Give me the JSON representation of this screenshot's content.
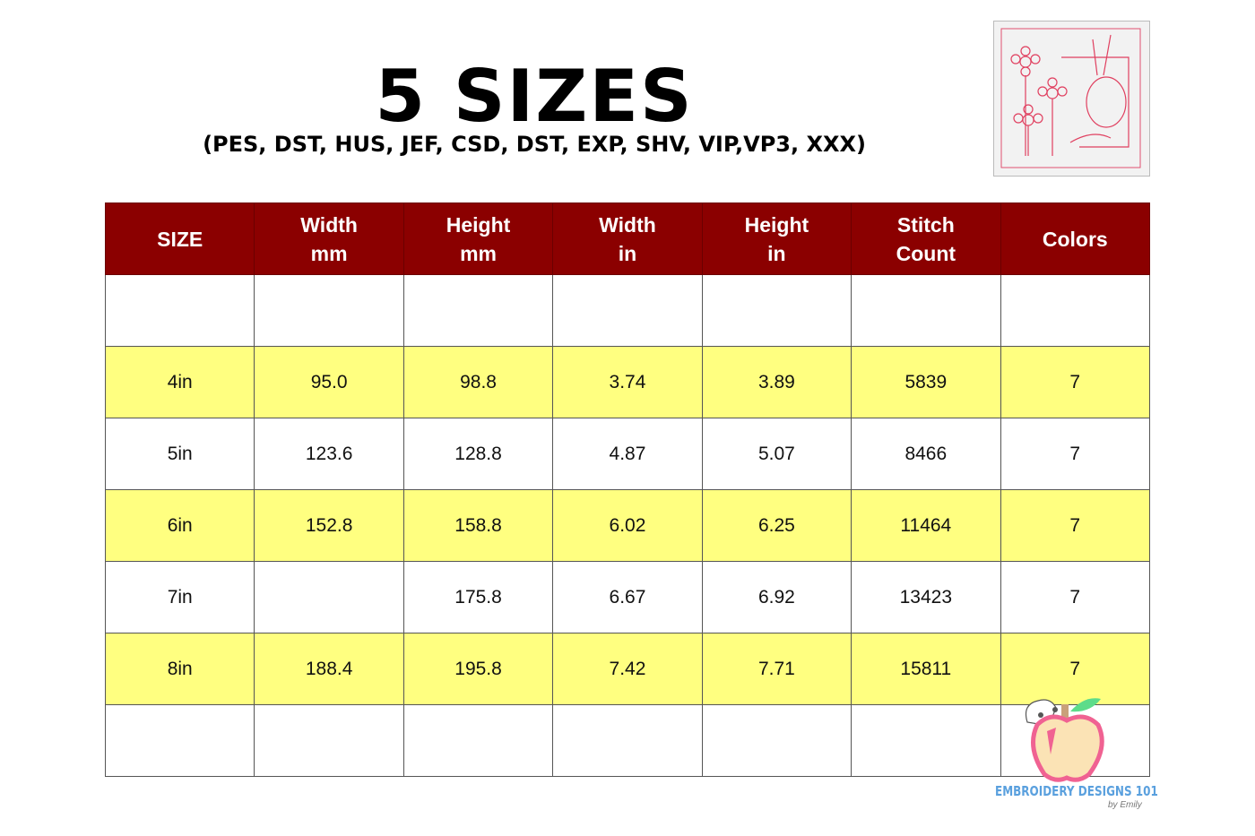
{
  "title": "5 SIZES",
  "subtitle": "(PES, DST, HUS, JEF, CSD, DST, EXP, SHV, VIP,VP3, XXX)",
  "table": {
    "headers": [
      [
        "SIZE"
      ],
      [
        "Width",
        "mm"
      ],
      [
        "Height",
        "mm"
      ],
      [
        "Width",
        "in"
      ],
      [
        "Height",
        "in"
      ],
      [
        "Stitch",
        "Count"
      ],
      [
        "Colors"
      ]
    ],
    "rows": [
      [
        "",
        "",
        "",
        "",
        "",
        "",
        ""
      ],
      [
        "4in",
        "95.0",
        "98.8",
        "3.74",
        "3.89",
        "5839",
        "7"
      ],
      [
        "5in",
        "123.6",
        "128.8",
        "4.87",
        "5.07",
        "8466",
        "7"
      ],
      [
        "6in",
        "152.8",
        "158.8",
        "6.02",
        "6.25",
        "11464",
        "7"
      ],
      [
        "7in",
        "",
        "175.8",
        "6.67",
        "6.92",
        "13423",
        "7"
      ],
      [
        "8in",
        "188.4",
        "195.8",
        "7.42",
        "7.71",
        "15811",
        "7"
      ],
      [
        "",
        "",
        "",
        "",
        "",
        "",
        ""
      ]
    ],
    "header_color": "#8b0000",
    "highlight_color": "#ffff80"
  },
  "logo": {
    "text": "EMBROIDERY DESIGNS 101",
    "by": "by Emily"
  }
}
